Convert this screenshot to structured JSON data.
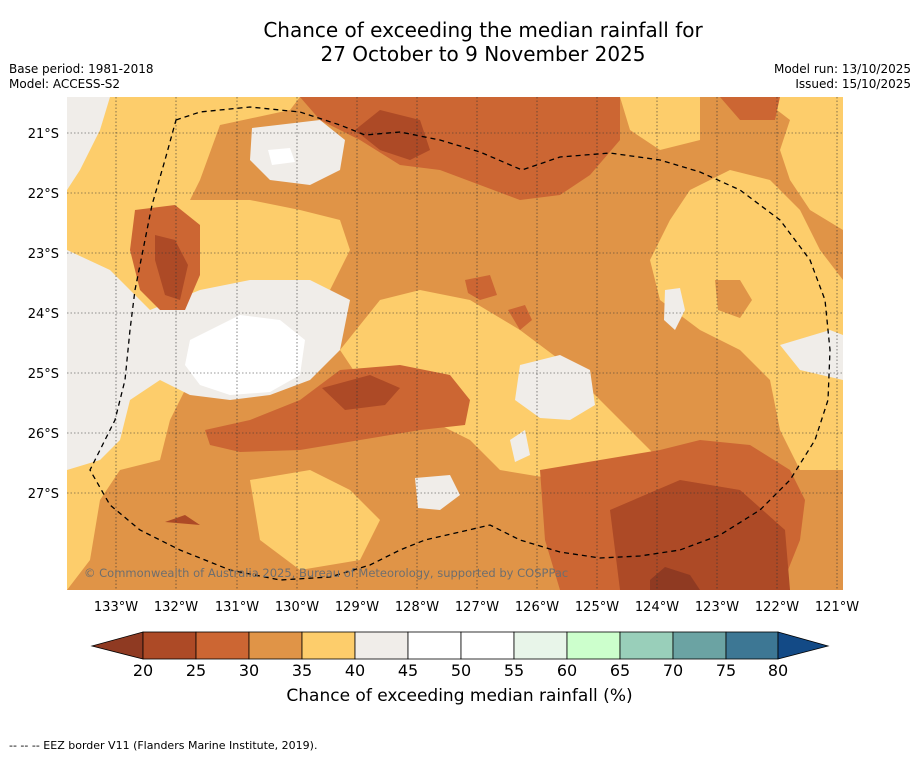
{
  "title": {
    "line1": "Chance of exceeding the median rainfall for",
    "line2": "27 October to 9 November 2025"
  },
  "meta_left": {
    "base_period": "Base period: 1981-2018",
    "model": "Model: ACCESS-S2"
  },
  "meta_right": {
    "model_run": "Model run: 13/10/2025",
    "issued": "Issued: 15/10/2025"
  },
  "map": {
    "lat_labels": [
      "21°S",
      "22°S",
      "23°S",
      "24°S",
      "25°S",
      "26°S",
      "27°S"
    ],
    "lon_labels": [
      "133°W",
      "132°W",
      "131°W",
      "130°W",
      "129°W",
      "128°W",
      "127°W",
      "126°W",
      "125°W",
      "124°W",
      "123°W",
      "122°W",
      "121°W"
    ],
    "copyright": "© Commonwealth of Australia 2025, Bureau of Meteorology, supported by COSPPac"
  },
  "colorbar": {
    "ticks": [
      "20",
      "25",
      "30",
      "35",
      "40",
      "45",
      "50",
      "55",
      "60",
      "65",
      "70",
      "75",
      "80"
    ],
    "colors": {
      "below20": "#8f3a22",
      "b20_25": "#ad4a26",
      "b25_30": "#cc6633",
      "b30_35": "#e09447",
      "b35_40": "#fdcd6b",
      "b40_45": "#f0ede9",
      "b45_50": "#ffffff",
      "b50_55": "#ffffff",
      "b55_60": "#e8f5e9",
      "b60_65": "#ccffcc",
      "b65_70": "#99cfba",
      "b70_75": "#6ba3a3",
      "b75_80": "#3d7794",
      "above80": "#134a86"
    },
    "label": "Chance of exceeding median rainfall (%)"
  },
  "footer": {
    "eez_note": "--  --  -- EEZ border V11 (Flanders Marine Institute, 2019)."
  }
}
